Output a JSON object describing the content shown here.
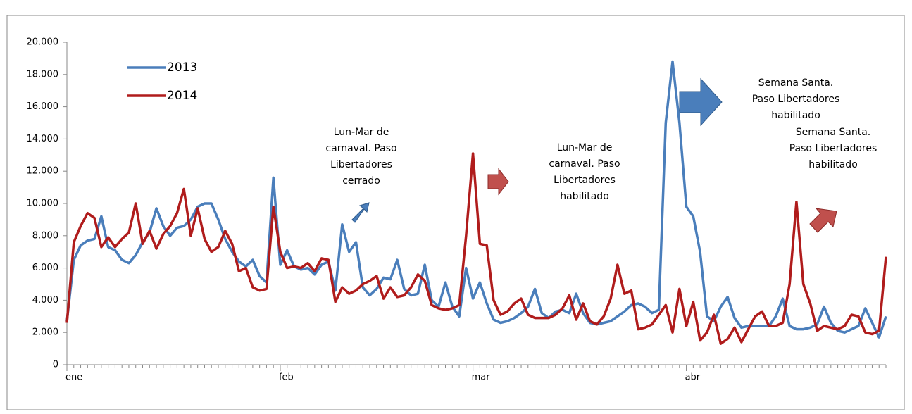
{
  "chart_data": {
    "type": "line",
    "categories": [
      "ene",
      null,
      null,
      null,
      null,
      null,
      null,
      null,
      null,
      null,
      null,
      null,
      null,
      null,
      null,
      null,
      null,
      null,
      null,
      null,
      null,
      null,
      null,
      null,
      null,
      null,
      null,
      null,
      null,
      null,
      null,
      "feb",
      null,
      null,
      null,
      null,
      null,
      null,
      null,
      null,
      null,
      null,
      null,
      null,
      null,
      null,
      null,
      null,
      null,
      null,
      null,
      null,
      null,
      null,
      null,
      null,
      null,
      null,
      null,
      "mar",
      null,
      null,
      null,
      null,
      null,
      null,
      null,
      null,
      null,
      null,
      null,
      null,
      null,
      null,
      null,
      null,
      null,
      null,
      null,
      null,
      null,
      null,
      null,
      null,
      null,
      null,
      null,
      null,
      null,
      null,
      "abr",
      null,
      null,
      null,
      null,
      null,
      null,
      null,
      null,
      null,
      null,
      null,
      null,
      null,
      null,
      null,
      null,
      null,
      null,
      null,
      null,
      null,
      null,
      null,
      null,
      null,
      null,
      null,
      null,
      null
    ],
    "series": [
      {
        "name": "2013",
        "color": "#4a7ebb",
        "values": [
          2700,
          6500,
          7400,
          7700,
          7800,
          9200,
          7300,
          7100,
          6500,
          6300,
          6800,
          7600,
          8200,
          9700,
          8600,
          8000,
          8500,
          8600,
          9000,
          9800,
          10000,
          10000,
          9000,
          7800,
          7000,
          6400,
          6100,
          6500,
          5500,
          5100,
          11600,
          6200,
          7100,
          6100,
          5900,
          6000,
          5600,
          6200,
          6400,
          4600,
          8700,
          7000,
          7600,
          4800,
          4300,
          4700,
          5400,
          5300,
          6500,
          4700,
          4300,
          4400,
          6200,
          4000,
          3600,
          5100,
          3600,
          3000,
          6000,
          4100,
          5100,
          3800,
          2800,
          2600,
          2700,
          2900,
          3200,
          3600,
          4700,
          3200,
          2900,
          3300,
          3400,
          3200,
          4400,
          3200,
          2600,
          2500,
          2600,
          2700,
          3000,
          3300,
          3700,
          3800,
          3600,
          3200,
          3400,
          15000,
          18800,
          15000,
          9800,
          9200,
          7000,
          3000,
          2700,
          3600,
          4200,
          2900,
          2300,
          2400,
          2400,
          2400,
          2400,
          3000,
          4100,
          2400,
          2200,
          2200,
          2300,
          2500,
          3600,
          2600,
          2100,
          2000,
          2200,
          2400,
          3500,
          2600,
          1700,
          3000
        ]
      },
      {
        "name": "2014",
        "color": "#b01c1c",
        "values": [
          2600,
          7600,
          8600,
          9400,
          9100,
          7300,
          7900,
          7300,
          7800,
          8200,
          10000,
          7500,
          8300,
          7200,
          8100,
          8600,
          9400,
          10900,
          8000,
          9700,
          7800,
          7000,
          7300,
          8300,
          7500,
          5800,
          6000,
          4800,
          4600,
          4700,
          9800,
          7000,
          6000,
          6100,
          6000,
          6300,
          5800,
          6600,
          6500,
          3900,
          4800,
          4400,
          4600,
          5000,
          5200,
          5500,
          4100,
          4800,
          4200,
          4300,
          4800,
          5600,
          5200,
          3700,
          3500,
          3400,
          3500,
          3700,
          8000,
          13100,
          7500,
          7400,
          4000,
          3100,
          3300,
          3800,
          4100,
          3100,
          2900,
          2900,
          2900,
          3100,
          3500,
          4300,
          2800,
          3800,
          2700,
          2500,
          3000,
          4100,
          6200,
          4400,
          4600,
          2200,
          2300,
          2500,
          3100,
          3700,
          2000,
          4700,
          2400,
          3900,
          1500,
          2000,
          3100,
          1300,
          1600,
          2300,
          1400,
          2200,
          3000,
          3300,
          2400,
          2400,
          2600,
          5000,
          10100,
          5000,
          3800,
          2100,
          2400,
          2300,
          2200,
          2400,
          3100,
          3000,
          2000,
          1900,
          2100,
          6700
        ]
      }
    ],
    "ylim": [
      0,
      20000
    ],
    "yticks": [
      0,
      {
        "value": 2000,
        "label": "2.000"
      },
      {
        "value": 4000,
        "label": "4.000"
      },
      {
        "value": 6000,
        "label": "6.000"
      },
      {
        "value": 8000,
        "label": "8.000"
      },
      {
        "value": 10000,
        "label": "10.000"
      },
      {
        "value": 12000,
        "label": "12.000"
      },
      {
        "value": 14000,
        "label": "14.000"
      },
      {
        "value": 16000,
        "label": "16.000"
      },
      {
        "value": 18000,
        "label": "18.000"
      },
      {
        "value": 20000,
        "label": "20.000"
      }
    ],
    "grid": false,
    "legend": "upper left",
    "annotations": [
      {
        "lines": [
          "Lun-Mar de",
          "carnaval. Paso",
          "Libertadores",
          "cerrado"
        ],
        "color": "#1f3864"
      },
      {
        "lines": [
          "Lun-Mar de",
          "carnaval. Paso",
          "Libertadores",
          "habilitado"
        ],
        "color": "#9b1c1c"
      },
      {
        "lines": [
          "Semana Santa.",
          "Paso Libertadores",
          "habilitado"
        ],
        "color": "#1f3864"
      },
      {
        "lines": [
          "Semana Santa.",
          "Paso Libertadores",
          "habilitado"
        ],
        "color": "#9b1c1c"
      }
    ]
  }
}
